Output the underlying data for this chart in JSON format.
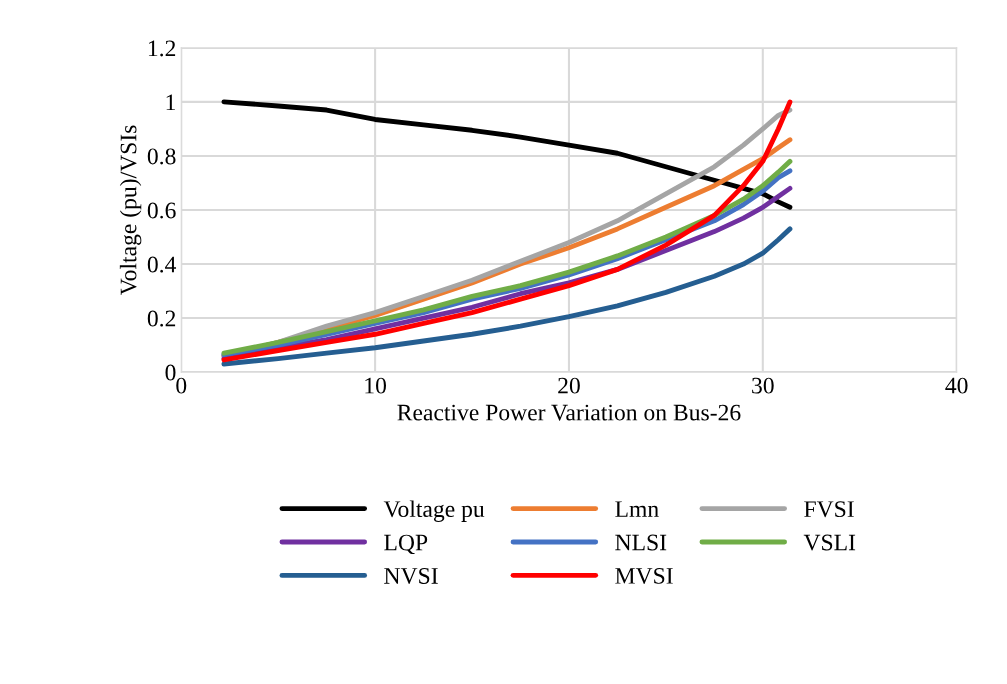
{
  "chart_data": {
    "type": "line",
    "xlabel": "Reactive Power Variation on Bus-26",
    "ylabel": "Voltage (pu)/VSIs",
    "x": [
      2.2,
      5,
      7.5,
      10,
      12.5,
      15,
      17.5,
      20,
      22.5,
      25,
      27.5,
      29,
      30,
      30.8,
      31.4
    ],
    "xlim": [
      0,
      40
    ],
    "xticks": [
      0,
      10,
      20,
      30,
      40
    ],
    "ylim": [
      0,
      1.2
    ],
    "yticks": [
      0,
      0.2,
      0.4,
      0.6,
      0.8,
      1,
      1.2
    ],
    "grid": true,
    "legend": "bottom",
    "marker": "none",
    "line_style": "solid",
    "series": [
      {
        "name": "Voltage pu",
        "color": "#000000",
        "values": [
          1.0,
          0.985,
          0.97,
          0.935,
          0.915,
          0.895,
          0.87,
          0.84,
          0.81,
          0.76,
          0.71,
          0.68,
          0.66,
          0.63,
          0.61
        ]
      },
      {
        "name": "Lmn",
        "color": "#ed7d31",
        "values": [
          0.06,
          0.11,
          0.16,
          0.21,
          0.27,
          0.33,
          0.4,
          0.46,
          0.53,
          0.61,
          0.69,
          0.75,
          0.79,
          0.83,
          0.86
        ]
      },
      {
        "name": "FVSI",
        "color": "#a5a5a5",
        "values": [
          0.06,
          0.11,
          0.17,
          0.22,
          0.28,
          0.34,
          0.41,
          0.48,
          0.56,
          0.66,
          0.76,
          0.84,
          0.9,
          0.95,
          0.97
        ]
      },
      {
        "name": "LQP",
        "color": "#7030a0",
        "values": [
          0.05,
          0.09,
          0.12,
          0.16,
          0.2,
          0.24,
          0.29,
          0.33,
          0.38,
          0.45,
          0.52,
          0.57,
          0.61,
          0.65,
          0.68
        ]
      },
      {
        "name": "NLSI",
        "color": "#4472c4",
        "values": [
          0.065,
          0.1,
          0.14,
          0.18,
          0.22,
          0.27,
          0.31,
          0.36,
          0.42,
          0.49,
          0.56,
          0.62,
          0.67,
          0.72,
          0.745
        ]
      },
      {
        "name": "VSLI",
        "color": "#70ad47",
        "values": [
          0.07,
          0.11,
          0.15,
          0.19,
          0.23,
          0.28,
          0.32,
          0.37,
          0.43,
          0.5,
          0.58,
          0.64,
          0.69,
          0.74,
          0.78
        ]
      },
      {
        "name": "NVSI",
        "color": "#255e91",
        "values": [
          0.03,
          0.05,
          0.07,
          0.09,
          0.115,
          0.14,
          0.17,
          0.205,
          0.245,
          0.295,
          0.355,
          0.4,
          0.44,
          0.49,
          0.53
        ]
      },
      {
        "name": "MVSI",
        "color": "#ff0000",
        "values": [
          0.045,
          0.08,
          0.11,
          0.14,
          0.18,
          0.22,
          0.27,
          0.32,
          0.38,
          0.47,
          0.58,
          0.69,
          0.78,
          0.9,
          1.0
        ]
      }
    ]
  }
}
